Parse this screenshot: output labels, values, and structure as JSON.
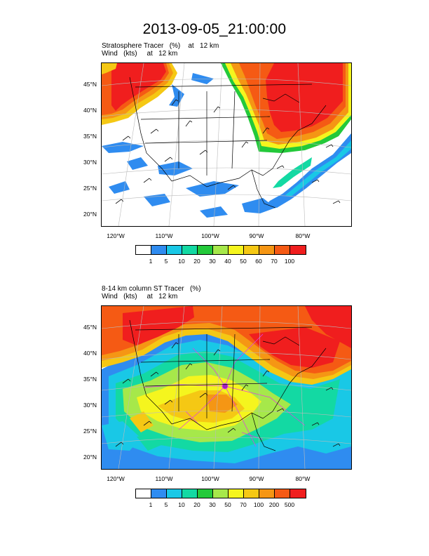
{
  "title": "2013-09-05_21:00:00",
  "panels": [
    {
      "label_line1": "Stratosphere Tracer   (%)    at   12 km",
      "label_line2": "Wind   (kts)     at   12 km",
      "lat_labels": [
        "45°N",
        "40°N",
        "35°N",
        "30°N",
        "25°N",
        "20°N"
      ],
      "lon_labels": [
        "120°W",
        "110°W",
        "100°W",
        "90°W",
        "80°W"
      ],
      "colorbar_labels": [
        "1",
        "5",
        "10",
        "20",
        "30",
        "40",
        "50",
        "60",
        "70",
        "100"
      ],
      "colorbar_colors": [
        "#ffffff",
        "#2f8cf0",
        "#19c8e6",
        "#13d9a3",
        "#23c93a",
        "#a6e84a",
        "#f5f51e",
        "#f5c814",
        "#f59614",
        "#f55a14",
        "#f01e1e"
      ]
    },
    {
      "label_line1": "8-14 km column ST Tracer   (%)",
      "label_line2": "Wind   (kts)     at   12 km",
      "lat_labels": [
        "45°N",
        "40°N",
        "35°N",
        "30°N",
        "25°N",
        "20°N"
      ],
      "lon_labels": [
        "120°W",
        "110°W",
        "100°W",
        "90°W",
        "80°W"
      ],
      "colorbar_labels": [
        "1",
        "5",
        "10",
        "20",
        "30",
        "50",
        "70",
        "100",
        "200",
        "500"
      ],
      "colorbar_colors": [
        "#ffffff",
        "#2f8cf0",
        "#19c8e6",
        "#13d9a3",
        "#23c93a",
        "#a6e84a",
        "#f5f51e",
        "#f5c814",
        "#f59614",
        "#f55a14",
        "#f01e1e"
      ]
    }
  ]
}
